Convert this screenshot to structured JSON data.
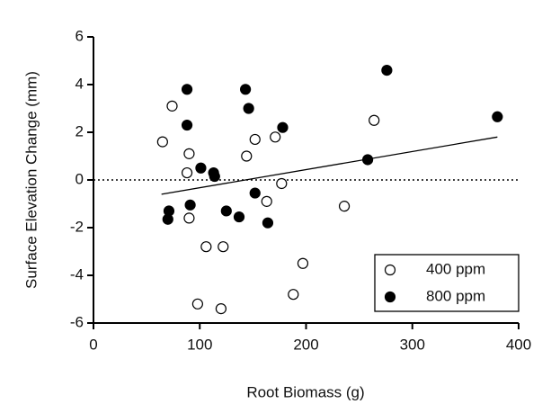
{
  "chart_data": {
    "type": "scatter",
    "xlabel": "Root Biomass (g)",
    "ylabel": "Surface  Elevation Change (mm)",
    "xlim": [
      0,
      400
    ],
    "xticks": [
      0,
      100,
      200,
      300,
      400
    ],
    "ylim": [
      -6,
      6
    ],
    "yticks": [
      -6,
      -4,
      -2,
      0,
      2,
      4,
      6
    ],
    "reference_line": 0,
    "fit_line": {
      "x": [
        64,
        380
      ],
      "y": [
        -0.6,
        1.8
      ],
      "color": "#000000"
    },
    "legend": "lower right",
    "series": [
      {
        "name": "400 ppm",
        "color": "#000000",
        "marker": "open",
        "x": [
          65,
          74,
          90,
          88,
          90,
          106,
          122,
          98,
          120,
          144,
          152,
          171,
          163,
          177,
          188,
          197,
          236,
          264
        ],
        "values": [
          1.6,
          3.1,
          1.1,
          0.3,
          -1.6,
          -2.8,
          -2.8,
          -5.2,
          -5.4,
          1.0,
          1.7,
          1.8,
          -0.9,
          -0.15,
          -4.8,
          -3.5,
          -1.1,
          2.5
        ]
      },
      {
        "name": "800 ppm",
        "color": "#000000",
        "marker": "filled",
        "x": [
          88,
          88,
          101,
          113,
          114,
          91,
          71,
          70,
          143,
          146,
          178,
          152,
          125,
          137,
          164,
          258,
          276,
          380
        ],
        "values": [
          3.8,
          2.3,
          0.5,
          0.3,
          0.15,
          -1.05,
          -1.3,
          -1.65,
          3.8,
          3.0,
          2.2,
          -0.55,
          -1.3,
          -1.55,
          -1.8,
          0.85,
          4.6,
          2.65
        ]
      }
    ]
  }
}
